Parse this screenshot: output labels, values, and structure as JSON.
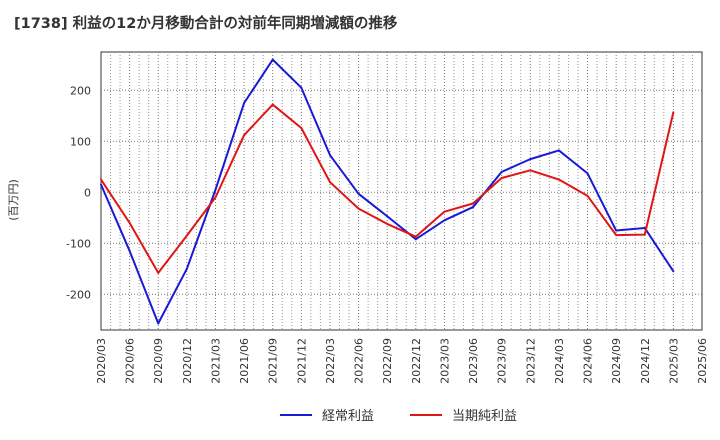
{
  "chart_data": {
    "type": "line",
    "title": "[1738]  利益の12か月移動合計の対前年同期増減額の推移",
    "ylabel": "(百万円)",
    "xlabel": "",
    "ylim": [
      -270,
      275
    ],
    "yticks": [
      200,
      100,
      0,
      -100,
      -200
    ],
    "grid": true,
    "legend_position": "bottom",
    "x": [
      "2020/03",
      "2020/06",
      "2020/09",
      "2020/12",
      "2021/03",
      "2021/06",
      "2021/09",
      "2021/12",
      "2022/03",
      "2022/06",
      "2022/09",
      "2022/12",
      "2023/03",
      "2023/06",
      "2023/09",
      "2023/12",
      "2024/03",
      "2024/06",
      "2024/09",
      "2024/12",
      "2025/03",
      "2025/06"
    ],
    "series": [
      {
        "name": "経常利益",
        "color": "#1a1ad6",
        "values": [
          15,
          -115,
          -257,
          -150,
          5,
          175,
          260,
          205,
          73,
          -3,
          -47,
          -92,
          -55,
          -29,
          40,
          65,
          82,
          37,
          -75,
          -70,
          -155,
          null
        ]
      },
      {
        "name": "当期純利益",
        "color": "#e01616",
        "values": [
          25,
          -60,
          -158,
          -85,
          -10,
          112,
          172,
          126,
          20,
          -32,
          -62,
          -87,
          -38,
          -22,
          28,
          43,
          25,
          -7,
          -84,
          -83,
          157,
          null
        ]
      }
    ]
  }
}
